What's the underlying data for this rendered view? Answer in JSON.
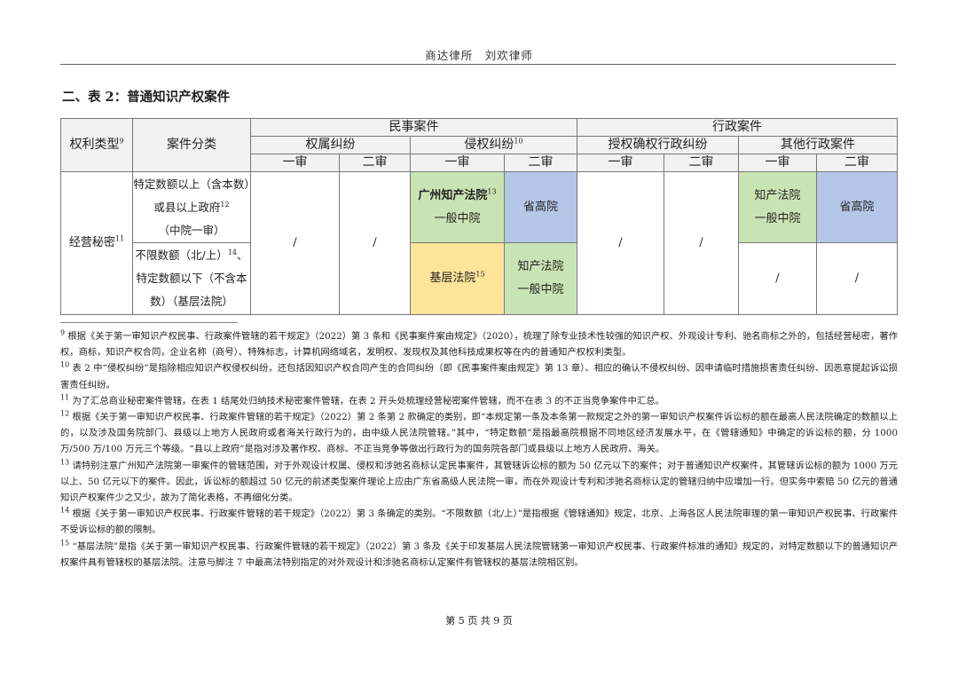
{
  "header": "商达律所　刘欢律师",
  "title": "二、表 2：普通知识产权案件",
  "table": {
    "col_rights_type": "权利类型",
    "col_rights_type_sup": "9",
    "col_case_class": "案件分类",
    "civil": "民事案件",
    "admin": "行政案件",
    "ownership": "权属纠纷",
    "infringement": "侵权纠纷",
    "infringement_sup": "10",
    "grant": "授权确权行政纠纷",
    "other_admin": "其他行政案件",
    "first": "一审",
    "second": "二审",
    "row_type": "经营秘密",
    "row_type_sup": "11",
    "row1_class_a": "特定数额以上（含本数）或县以上政府",
    "row1_class_sup": "12",
    "row1_class_b": "（中院一审）",
    "row2_class_a": "不限数额（北/上）",
    "row2_class_sup": "14",
    "row2_class_b": "、特定数额以下（不含本数）（基层法院）",
    "slash": "/",
    "gz_court": "广州知产法院",
    "gz_sup": "13",
    "general_mid": "一般中院",
    "prov_high": "省高院",
    "ip_court": "知产法院",
    "basic_court": "基层法院",
    "basic_sup": "15"
  },
  "colors": {
    "green": "#c9e4b4",
    "blue": "#b4c7e7",
    "yellow": "#fce49a",
    "header_gray": "#f2f2f2"
  },
  "footnotes": [
    {
      "n": "9",
      "text": "根据《关于第一审知识产权民事、行政案件管辖的若干规定》（2022）第 3 条和《民事案件案由规定》（2020），梳理了除专业技术性较强的知识产权、外观设计专利、驰名商标之外的，包括经营秘密，著作权，商标，知识产权合同，企业名称（商号）、特殊标志，计算机网络域名，发明权、发现权及其他科技成果权等在内的普通知产权权利类型。"
    },
    {
      "n": "10",
      "text": "表 2 中“侵权纠纷”是指除相应知识产权侵权纠纷，还包括因知识产权合同产生的合同纠纷（即《民事案件案由规定》第 13 章）、相应的确认不侵权纠纷、因申请临时措施损害责任纠纷、因恶意提起诉讼损害责任纠纷。"
    },
    {
      "n": "11",
      "text": "为了汇总商业秘密案件管辖，在表 1 结尾处归纳技术秘密案件管辖，在表 2 开头处梳理经营秘密案件管辖，而不在表 3 的不正当竞争案件中汇总。"
    },
    {
      "n": "12",
      "text": "根据《关于第一审知识产权民事、行政案件管辖的若干规定》（2022）第 2 条第 2 款确定的类别，即“本规定第一条及本条第一款规定之外的第一审知识产权案件诉讼标的额在最高人民法院确定的数额以上的，以及涉及国务院部门、县级以上地方人民政府或者海关行政行为的，由中级人民法院管辖。”其中，“特定数额”是指最高院根据不同地区经济发展水平，在《管辖通知》中确定的诉讼标的额，分 1000 万/500 万/100 万元三个等级。“县以上政府”是指对涉及著作权、商标、不正当竞争等做出行政行为的国务院各部门或县级以上地方人民政府、海关。"
    },
    {
      "n": "13",
      "text": "请特别注意广州知产法院第一审案件的管辖范围，对于外观设计权属、侵权和涉驰名商标认定民事案件，其管辖诉讼标的额为 50 亿元以下的案件；对于普通知识产权案件，其管辖诉讼标的额为 1000 万元以上、50 亿元以下的案件。因此，诉讼标的额超过 50 亿元的前述类型案件理论上应由广东省高级人民法院一审，而在外观设计专利和涉驰名商标认定的管辖归纳中应增加一行。但实务中索赔 50 亿元的普通知识产权案件少之又少，故为了简化表格，不再细化分类。"
    },
    {
      "n": "14",
      "text": "根据《关于第一审知识产权民事、行政案件管辖的若干规定》（2022）第 3 条确定的类别。“不限数额（北/上）”是指根据《管辖通知》规定，北京、上海各区人民法院审理的第一审知识产权民事、行政案件不受诉讼标的额的限制。"
    },
    {
      "n": "15",
      "text": "“基层法院”是指《关于第一审知识产权民事、行政案件管辖的若干规定》（2022）第 3 条及《关于印发基层人民法院管辖第一审知识产权民事、行政案件标准的通知》规定的，对特定数额以下的普通知识产权案件具有管辖权的基层法院。注意与脚注 7 中最高法特别指定的对外观设计和涉驰名商标认定案件有管辖权的基层法院相区别。"
    }
  ],
  "footer": "第 5 页 共 9 页"
}
